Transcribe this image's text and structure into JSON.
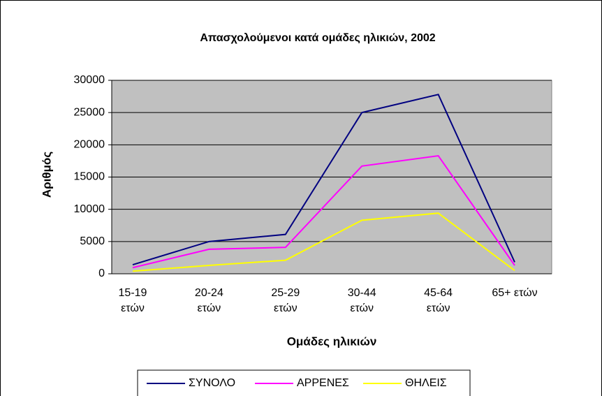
{
  "chart_data": {
    "type": "line",
    "title": "Απασχολούμενοι κατά ομάδες ηλικιών, 2002",
    "y_label": "Αριθμός",
    "x_label": "Ομάδες ηλικιών",
    "categories": [
      "15-19\nετών",
      "20-24\nετών",
      "25-29\nετών",
      "30-44\nετών",
      "45-64\nετών",
      "65+  ετών"
    ],
    "series": [
      {
        "name": "ΣΥΝΟΛΟ",
        "color": "#000080",
        "values": [
          1400,
          5000,
          6100,
          25000,
          27800,
          1800
        ]
      },
      {
        "name": "ΑΡΡΕΝΕΣ",
        "color": "#ff00ff",
        "values": [
          950,
          3800,
          4100,
          16700,
          18300,
          1300
        ]
      },
      {
        "name": "ΘΗΛΕΙΣ",
        "color": "#ffff00",
        "values": [
          400,
          1300,
          2100,
          8300,
          9400,
          500
        ]
      }
    ],
    "ylim": [
      0,
      30000
    ],
    "yticks": [
      0,
      5000,
      10000,
      15000,
      20000,
      25000,
      30000
    ],
    "grid": true,
    "legend": "bottom"
  }
}
